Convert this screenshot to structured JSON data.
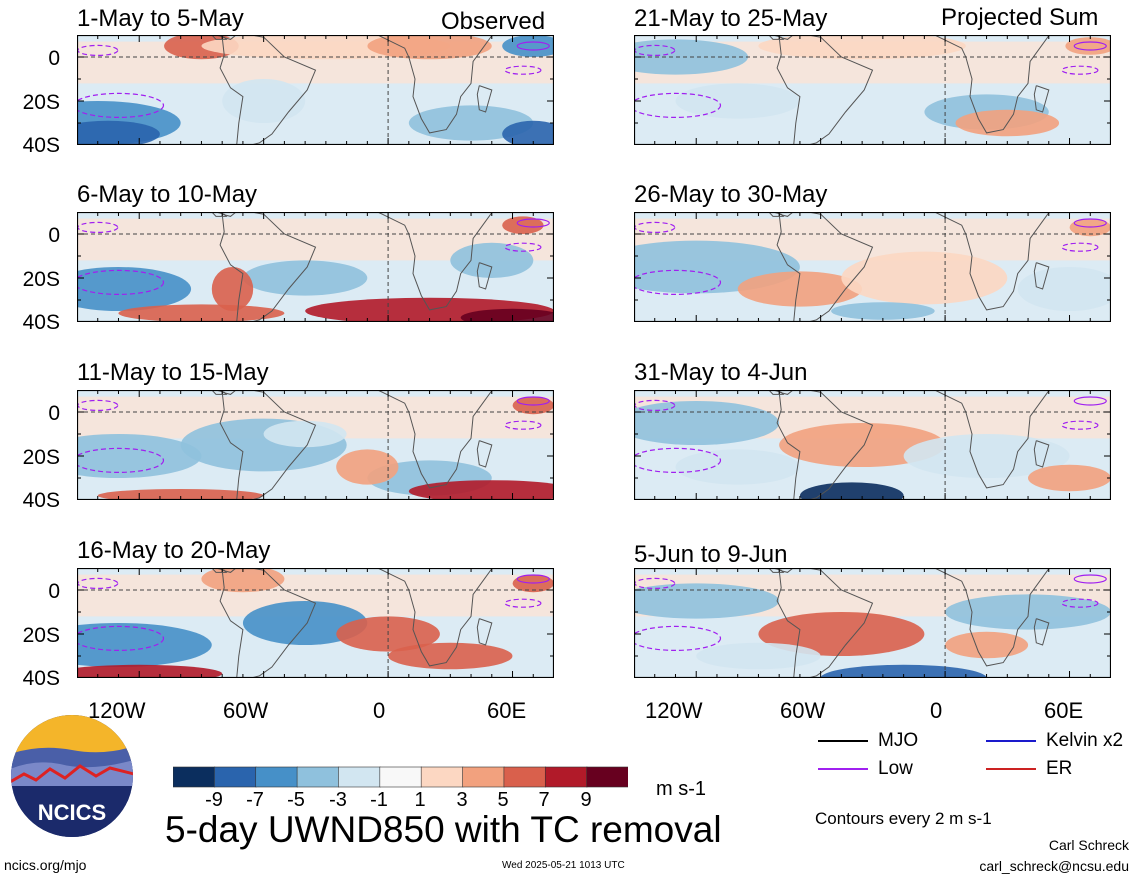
{
  "header": {
    "left_label": "Observed",
    "right_label": "Projected Sum"
  },
  "panels": [
    {
      "title": "1-May to 5-May"
    },
    {
      "title": "6-May to 10-May"
    },
    {
      "title": "11-May to 15-May"
    },
    {
      "title": "16-May to 20-May"
    },
    {
      "title": "21-May to 25-May"
    },
    {
      "title": "26-May to 30-May"
    },
    {
      "title": "31-May to 4-Jun"
    },
    {
      "title": "5-Jun to 9-Jun"
    }
  ],
  "axes": {
    "y_ticks": [
      "0",
      "20S",
      "40S"
    ],
    "x_ticks": [
      "120W",
      "60W",
      "0",
      "60E"
    ]
  },
  "colorbar": {
    "labels": [
      "-9",
      "-7",
      "-5",
      "-3",
      "-1",
      "1",
      "3",
      "5",
      "7",
      "9"
    ],
    "colors": [
      "#0b2e5e",
      "#2a64ad",
      "#4690c8",
      "#8fc1dd",
      "#d2e6f1",
      "#f8f8f8",
      "#fcd7c2",
      "#f2a17e",
      "#d9604c",
      "#b11a29",
      "#67001f"
    ],
    "units": "m s-1"
  },
  "legend": {
    "items": [
      {
        "label": "MJO",
        "color": "#000000"
      },
      {
        "label": "Kelvin x2",
        "color": "#1a1acc"
      },
      {
        "label": "Low",
        "color": "#a020f0"
      },
      {
        "label": "ER",
        "color": "#cc2222"
      }
    ],
    "contours_note": "Contours every 2 m s-1"
  },
  "footer": {
    "main_title": "5-day UWND850 with TC removal",
    "logo_text": "NCICS",
    "url": "ncics.org/mjo",
    "timestamp": "Wed 2025-05-21 1013 UTC",
    "author": "Carl Schreck",
    "email": "carl_schreck@ncsu.edu"
  },
  "chart_data": {
    "type": "heatmap",
    "variable": "850-hPa zonal wind anomaly (5-day mean, TC removed)",
    "units": "m s-1",
    "lon_range": [
      "150W",
      "80E"
    ],
    "lat_range": [
      "10N",
      "40S"
    ],
    "contour_levels": [
      -9,
      -7,
      -5,
      -3,
      -1,
      1,
      3,
      5,
      7,
      9
    ],
    "contour_interval_overlay": 2,
    "panels": [
      {
        "title": "1-May to 5-May",
        "kind": "Observed"
      },
      {
        "title": "6-May to 10-May",
        "kind": "Observed"
      },
      {
        "title": "11-May to 15-May",
        "kind": "Observed"
      },
      {
        "title": "16-May to 20-May",
        "kind": "Observed"
      },
      {
        "title": "21-May to 25-May",
        "kind": "Projected Sum"
      },
      {
        "title": "26-May to 30-May",
        "kind": "Projected Sum"
      },
      {
        "title": "31-May to 4-Jun",
        "kind": "Projected Sum"
      },
      {
        "title": "5-Jun to 9-Jun",
        "kind": "Projected Sum"
      }
    ],
    "grid": true
  }
}
